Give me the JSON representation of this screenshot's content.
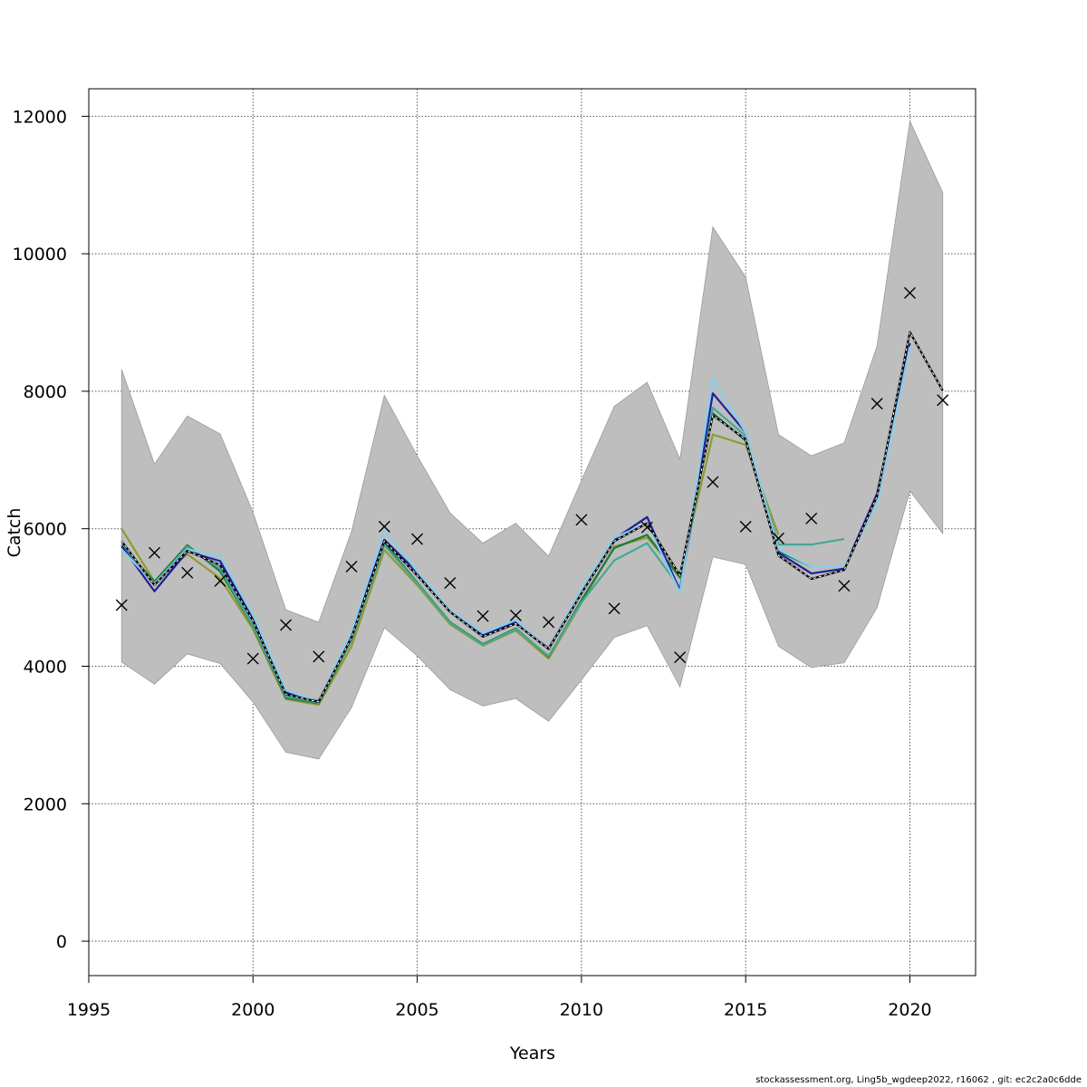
{
  "chart_data": {
    "type": "line",
    "xlabel": "Years",
    "ylabel": "Catch",
    "xlim": [
      1995,
      2022
    ],
    "ylim": [
      -500,
      12400
    ],
    "x_ticks": [
      1995,
      2000,
      2005,
      2010,
      2015,
      2020
    ],
    "y_ticks": [
      0,
      2000,
      4000,
      6000,
      8000,
      10000,
      12000
    ],
    "grid": true,
    "band": {
      "color": "#bebebe",
      "x": [
        1996,
        1997,
        1998,
        1999,
        2000,
        2001,
        2002,
        2003,
        2004,
        2005,
        2006,
        2007,
        2008,
        2009,
        2010,
        2011,
        2012,
        2013,
        2014,
        2015,
        2016,
        2017,
        2018,
        2019,
        2020,
        2021
      ],
      "lower": [
        4060,
        3740,
        4180,
        4040,
        3480,
        2750,
        2650,
        3400,
        4560,
        4150,
        3660,
        3420,
        3530,
        3200,
        3800,
        4420,
        4590,
        3700,
        5590,
        5480,
        4290,
        3980,
        4050,
        4850,
        6550,
        5930
      ],
      "upper": [
        8320,
        6940,
        7640,
        7380,
        6240,
        4820,
        4640,
        5960,
        7940,
        7060,
        6230,
        5790,
        6080,
        5600,
        6700,
        7780,
        8130,
        7010,
        10390,
        9660,
        7370,
        7060,
        7250,
        8660,
        11930,
        10890
      ]
    },
    "observed": {
      "marker": "x",
      "x": [
        1996,
        1997,
        1998,
        1999,
        2000,
        2001,
        2002,
        2003,
        2004,
        2005,
        2006,
        2007,
        2008,
        2009,
        2010,
        2011,
        2012,
        2013,
        2014,
        2015,
        2016,
        2017,
        2018,
        2019,
        2020,
        2021
      ],
      "y": [
        4890,
        5650,
        5360,
        5240,
        4110,
        4600,
        4140,
        5450,
        6030,
        5850,
        5210,
        4730,
        4740,
        4640,
        6130,
        4840,
        6020,
        4130,
        6680,
        6030,
        5860,
        6150,
        5170,
        7820,
        9430,
        7870
      ]
    },
    "series": [
      {
        "color": "#000000",
        "dashed": true,
        "x": [
          1996,
          1997,
          1998,
          1999,
          2000,
          2001,
          2002,
          2003,
          2004,
          2005,
          2006,
          2007,
          2008,
          2009,
          2010,
          2011,
          2012,
          2013,
          2014,
          2015,
          2016,
          2017,
          2018,
          2019,
          2020,
          2021
        ],
        "y": [
          5820,
          5180,
          5680,
          5470,
          4660,
          3590,
          3480,
          4420,
          5820,
          5320,
          4790,
          4430,
          4620,
          4250,
          5060,
          5820,
          6080,
          5320,
          7650,
          7300,
          5610,
          5270,
          5400,
          6470,
          8860,
          8010
        ]
      },
      {
        "color": "#87ceeb",
        "x": [
          1996,
          1997,
          1998,
          1999,
          2000,
          2001,
          2002,
          2003,
          2004,
          2005,
          2006,
          2007,
          2008,
          2009,
          2010,
          2011,
          2012,
          2013,
          2014,
          2015,
          2016,
          2017,
          2018,
          2019,
          2020
        ],
        "y": [
          5700,
          5200,
          5700,
          5600,
          4750,
          3650,
          3480,
          4500,
          5980,
          5380,
          4820,
          4480,
          4670,
          4250,
          5120,
          5870,
          6080,
          5070,
          8180,
          7400,
          5700,
          5450,
          5450,
          6350,
          8650
        ]
      },
      {
        "color": "#1f1f9a",
        "x": [
          1996,
          1997,
          1998,
          1999,
          2000,
          2001,
          2002,
          2003,
          2004,
          2005,
          2006,
          2007,
          2008,
          2009,
          2010,
          2011,
          2012,
          2013,
          2014,
          2015,
          2016,
          2017,
          2018,
          2019,
          2020
        ],
        "y": [
          5750,
          5090,
          5670,
          5530,
          4680,
          3620,
          3490,
          4470,
          5840,
          5370,
          4800,
          4450,
          4640,
          4260,
          5110,
          5850,
          6170,
          5100,
          7970,
          7400,
          5650,
          5350,
          5420,
          6510,
          8700
        ]
      },
      {
        "color": "#46a896",
        "x": [
          1996,
          1997,
          1998,
          1999,
          2000,
          2001,
          2002,
          2003,
          2004,
          2005,
          2006,
          2007,
          2008,
          2009,
          2010,
          2011,
          2012,
          2013,
          2014,
          2015,
          2016,
          2017,
          2018
        ],
        "y": [
          5780,
          5200,
          5740,
          5420,
          4590,
          3560,
          3470,
          4390,
          5760,
          5210,
          4630,
          4310,
          4540,
          4150,
          4930,
          5540,
          5790,
          5140,
          7760,
          7350,
          5770,
          5770,
          5850
        ]
      },
      {
        "color": "#1a7a3a",
        "x": [
          1996,
          1997,
          1998,
          1999,
          2000,
          2001,
          2002,
          2003,
          2004,
          2005,
          2006,
          2007,
          2008,
          2009,
          2010,
          2011,
          2012,
          2013,
          2014,
          2015,
          2016,
          2017
        ],
        "y": [
          5750,
          5230,
          5760,
          5380,
          4580,
          3540,
          3460,
          4380,
          5790,
          5220,
          4640,
          4320,
          4550,
          4140,
          4960,
          5720,
          5910,
          5290,
          7680,
          7280,
          5670,
          5450
        ]
      },
      {
        "color": "#8f9a32",
        "x": [
          1996,
          1997,
          1998,
          1999,
          2000,
          2001,
          2002,
          2003,
          2004,
          2005,
          2006,
          2007,
          2008,
          2009,
          2010,
          2011,
          2012,
          2013,
          2014,
          2015,
          2016
        ],
        "y": [
          6000,
          5230,
          5630,
          5280,
          4540,
          3520,
          3440,
          4290,
          5690,
          5180,
          4610,
          4300,
          4520,
          4110,
          4920,
          5740,
          5870,
          5330,
          7370,
          7220,
          5910
        ]
      }
    ]
  },
  "footer": "stockassessment.org, Ling5b_wgdeep2022, r16062 , git: ec2c2a0c6dde"
}
